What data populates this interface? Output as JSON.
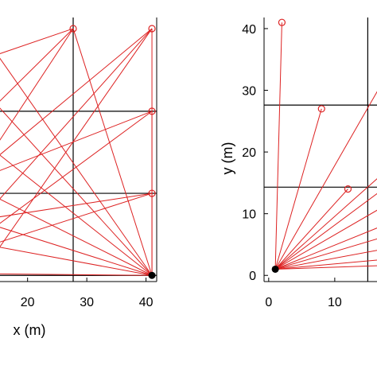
{
  "chart_data": [
    {
      "type": "line",
      "xlabel": "x (m)",
      "ylabel": "",
      "xlim": [
        14,
        41.8
      ],
      "ylim": [
        -1,
        41.8
      ],
      "xticks": [
        20,
        30,
        40
      ],
      "yticks": [],
      "grid_x": [
        27.7
      ],
      "grid_y": [
        0,
        13.3,
        26.6
      ],
      "colors": {
        "ray": "#dd2222",
        "frame": "#000000",
        "grid": "#000000",
        "source": "#000000"
      },
      "source": {
        "x": 41,
        "y": 0
      },
      "receivers": [
        {
          "x": 27.7,
          "y": 40
        },
        {
          "x": 41,
          "y": 40
        },
        {
          "x": 41,
          "y": 26.6
        },
        {
          "x": 41,
          "y": 13.3
        }
      ],
      "rays": [
        [
          [
            41,
            0
          ],
          [
            27.7,
            40
          ]
        ],
        [
          [
            41,
            0
          ],
          [
            41,
            40
          ]
        ],
        [
          [
            41,
            0
          ],
          [
            41,
            26.6
          ]
        ],
        [
          [
            41,
            0
          ],
          [
            41,
            13.3
          ]
        ],
        [
          [
            41,
            0
          ],
          [
            14,
            37
          ]
        ],
        [
          [
            41,
            0
          ],
          [
            14,
            28.5
          ]
        ],
        [
          [
            41,
            0
          ],
          [
            14,
            20.5
          ]
        ],
        [
          [
            41,
            0
          ],
          [
            14,
            13
          ]
        ],
        [
          [
            41,
            0
          ],
          [
            14,
            8.2
          ]
        ],
        [
          [
            41,
            0
          ],
          [
            14,
            4.8
          ]
        ],
        [
          [
            41,
            0
          ],
          [
            14,
            0.25
          ]
        ],
        [
          [
            27.7,
            40
          ],
          [
            14,
            27
          ]
        ],
        [
          [
            27.7,
            40
          ],
          [
            14,
            20
          ]
        ],
        [
          [
            41,
            40
          ],
          [
            14,
            11
          ]
        ],
        [
          [
            41,
            40
          ],
          [
            14,
            2.8
          ]
        ],
        [
          [
            41,
            26.6
          ],
          [
            14,
            7.5
          ]
        ],
        [
          [
            41,
            13.3
          ],
          [
            14,
            5
          ]
        ],
        [
          [
            14,
            35.5
          ],
          [
            27.7,
            40
          ]
        ],
        [
          [
            14,
            18.5
          ],
          [
            41,
            40
          ]
        ],
        [
          [
            14,
            16.5
          ],
          [
            41,
            26.6
          ]
        ],
        [
          [
            14,
            9.3
          ],
          [
            41,
            13.3
          ]
        ]
      ]
    },
    {
      "type": "line",
      "xlabel": "",
      "ylabel": "y (m)",
      "xlim": [
        -0.7,
        17.6
      ],
      "ylim": [
        -1,
        41.8
      ],
      "xticks": [
        0,
        10
      ],
      "yticks": [
        0,
        10,
        20,
        30,
        40
      ],
      "grid_x": [
        15
      ],
      "grid_y": [
        14.3,
        27.6
      ],
      "colors": {
        "ray": "#dd2222",
        "frame": "#000000",
        "grid": "#000000",
        "source": "#000000"
      },
      "source": {
        "x": 1,
        "y": 1
      },
      "receivers": [
        {
          "x": 2,
          "y": 41
        },
        {
          "x": 8,
          "y": 27
        },
        {
          "x": 12,
          "y": 14
        }
      ],
      "rays": [
        [
          [
            1,
            1
          ],
          [
            2,
            41
          ]
        ],
        [
          [
            1,
            1
          ],
          [
            8,
            27
          ]
        ],
        [
          [
            1,
            1
          ],
          [
            12,
            14
          ]
        ],
        [
          [
            1,
            1
          ],
          [
            17.6,
            32
          ]
        ],
        [
          [
            1,
            1
          ],
          [
            17.6,
            16.8
          ]
        ],
        [
          [
            1,
            1
          ],
          [
            17.6,
            14.2
          ]
        ],
        [
          [
            1,
            1
          ],
          [
            17.6,
            11.3
          ]
        ],
        [
          [
            1,
            1
          ],
          [
            17.6,
            8.2
          ]
        ],
        [
          [
            1,
            1
          ],
          [
            17.6,
            6.3
          ]
        ],
        [
          [
            1,
            1
          ],
          [
            17.6,
            4.3
          ]
        ],
        [
          [
            1,
            1
          ],
          [
            17.6,
            2.6
          ]
        ],
        [
          [
            1,
            1
          ],
          [
            17.6,
            1.6
          ]
        ]
      ]
    }
  ]
}
